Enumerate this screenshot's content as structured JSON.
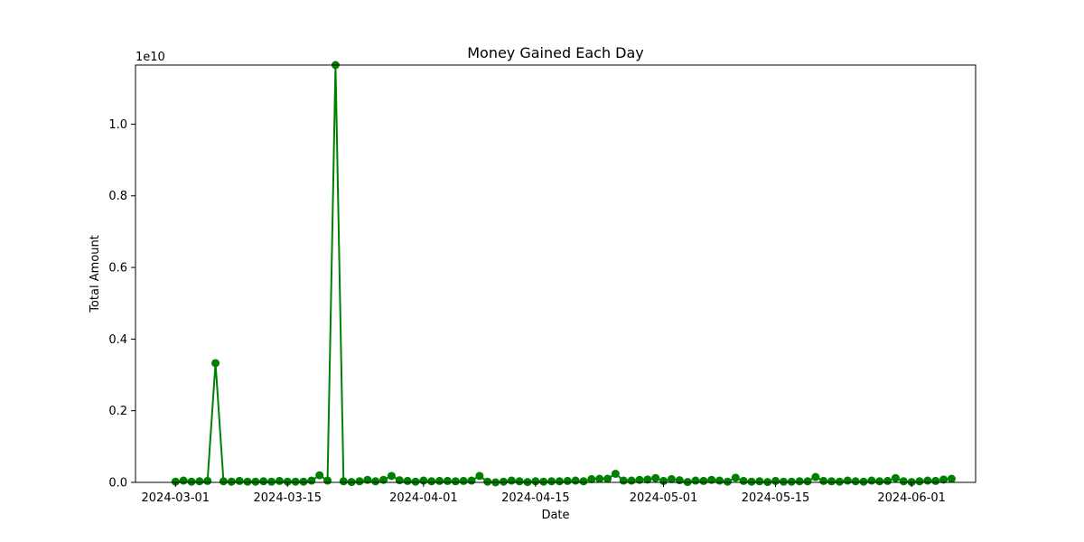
{
  "chart_data": {
    "type": "line",
    "title": "Money Gained Each Day",
    "xlabel": "Date",
    "ylabel": "Total Amount",
    "y_offset_label": "1e10",
    "x_range": [
      "2024-02-25",
      "2024-06-09"
    ],
    "ylim": [
      0,
      1.165
    ],
    "grid": false,
    "line_color": "#008000",
    "x_ticks": [
      {
        "date": "2024-03-01",
        "label": "2024-03-01"
      },
      {
        "date": "2024-03-15",
        "label": "2024-03-15"
      },
      {
        "date": "2024-04-01",
        "label": "2024-04-01"
      },
      {
        "date": "2024-04-15",
        "label": "2024-04-15"
      },
      {
        "date": "2024-05-01",
        "label": "2024-05-01"
      },
      {
        "date": "2024-05-15",
        "label": "2024-05-15"
      },
      {
        "date": "2024-06-01",
        "label": "2024-06-01"
      }
    ],
    "y_ticks": [
      {
        "value": 0.0,
        "label": "0.0"
      },
      {
        "value": 0.2,
        "label": "0.2"
      },
      {
        "value": 0.4,
        "label": "0.4"
      },
      {
        "value": 0.6,
        "label": "0.6"
      },
      {
        "value": 0.8,
        "label": "0.8"
      },
      {
        "value": 1.0,
        "label": "1.0"
      }
    ],
    "series": [
      {
        "x": [
          "2024-03-01",
          "2024-03-02",
          "2024-03-03",
          "2024-03-04",
          "2024-03-05",
          "2024-03-06",
          "2024-03-07",
          "2024-03-08",
          "2024-03-09",
          "2024-03-10",
          "2024-03-11",
          "2024-03-12",
          "2024-03-13",
          "2024-03-14",
          "2024-03-15",
          "2024-03-16",
          "2024-03-17",
          "2024-03-18",
          "2024-03-19",
          "2024-03-20",
          "2024-03-21",
          "2024-03-22",
          "2024-03-23",
          "2024-03-24",
          "2024-03-25",
          "2024-03-26",
          "2024-03-27",
          "2024-03-28",
          "2024-03-29",
          "2024-03-30",
          "2024-03-31",
          "2024-04-01",
          "2024-04-02",
          "2024-04-03",
          "2024-04-04",
          "2024-04-05",
          "2024-04-06",
          "2024-04-07",
          "2024-04-08",
          "2024-04-09",
          "2024-04-10",
          "2024-04-11",
          "2024-04-12",
          "2024-04-13",
          "2024-04-14",
          "2024-04-15",
          "2024-04-16",
          "2024-04-17",
          "2024-04-18",
          "2024-04-19",
          "2024-04-20",
          "2024-04-21",
          "2024-04-22",
          "2024-04-23",
          "2024-04-24",
          "2024-04-25",
          "2024-04-26",
          "2024-04-27",
          "2024-04-28",
          "2024-04-29",
          "2024-04-30",
          "2024-05-01",
          "2024-05-02",
          "2024-05-03",
          "2024-05-04",
          "2024-05-05",
          "2024-05-06",
          "2024-05-07",
          "2024-05-08",
          "2024-05-09",
          "2024-05-10",
          "2024-05-11",
          "2024-05-12",
          "2024-05-13",
          "2024-05-14",
          "2024-05-15",
          "2024-05-16",
          "2024-05-17",
          "2024-05-18",
          "2024-05-19",
          "2024-05-20",
          "2024-05-21",
          "2024-05-22",
          "2024-05-23",
          "2024-05-24",
          "2024-05-25",
          "2024-05-26",
          "2024-05-27",
          "2024-05-28",
          "2024-05-29",
          "2024-05-30",
          "2024-05-31",
          "2024-06-01",
          "2024-06-02",
          "2024-06-03",
          "2024-06-04",
          "2024-06-05",
          "2024-06-06"
        ],
        "y": [
          0.002,
          0.005,
          0.002,
          0.003,
          0.004,
          0.333,
          0.003,
          0.002,
          0.004,
          0.002,
          0.002,
          0.003,
          0.002,
          0.004,
          0.002,
          0.002,
          0.002,
          0.005,
          0.02,
          0.005,
          1.165,
          0.003,
          0.001,
          0.003,
          0.007,
          0.003,
          0.007,
          0.018,
          0.006,
          0.004,
          0.002,
          0.005,
          0.003,
          0.004,
          0.004,
          0.003,
          0.004,
          0.005,
          0.018,
          0.002,
          0.0,
          0.002,
          0.005,
          0.003,
          0.001,
          0.003,
          0.002,
          0.003,
          0.003,
          0.004,
          0.005,
          0.003,
          0.009,
          0.01,
          0.01,
          0.024,
          0.005,
          0.005,
          0.007,
          0.008,
          0.012,
          0.004,
          0.009,
          0.006,
          0.001,
          0.005,
          0.004,
          0.007,
          0.005,
          0.002,
          0.013,
          0.004,
          0.002,
          0.003,
          0.001,
          0.004,
          0.002,
          0.002,
          0.003,
          0.003,
          0.015,
          0.004,
          0.003,
          0.002,
          0.005,
          0.003,
          0.002,
          0.005,
          0.003,
          0.004,
          0.012,
          0.003,
          0.001,
          0.003,
          0.005,
          0.004,
          0.008,
          0.01
        ]
      }
    ]
  }
}
